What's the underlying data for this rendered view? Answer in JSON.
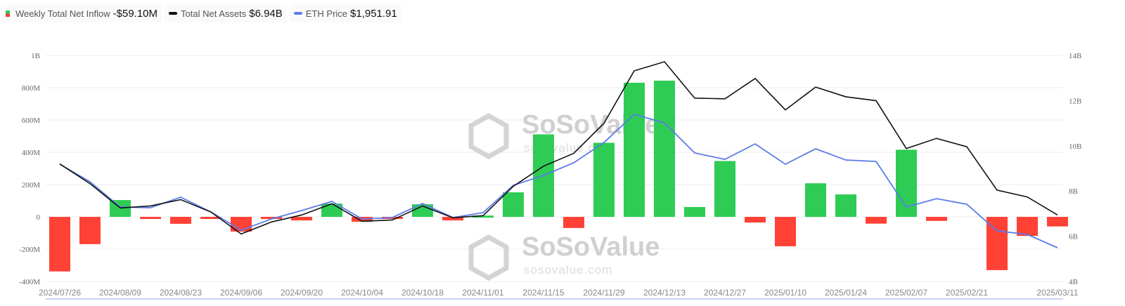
{
  "legend": [
    {
      "label": "Weekly Total Net Inflow",
      "value": "-$59.10M"
    },
    {
      "label": "Total Net Assets",
      "value": "$6.94B"
    },
    {
      "label": "ETH Price",
      "value": "$1,951.91"
    }
  ],
  "watermark": {
    "brand": "SoSoValue",
    "url": "sosovalue.com"
  },
  "colors": {
    "positive": "#2ecc55",
    "negative": "#ff4136",
    "assets": "#111111",
    "price": "#5b7be8"
  },
  "chart_data": {
    "type": "bar+line",
    "x": [
      "2024/07/26",
      "2024/08/02",
      "2024/08/09",
      "2024/08/16",
      "2024/08/23",
      "2024/08/30",
      "2024/09/06",
      "2024/09/13",
      "2024/09/20",
      "2024/09/27",
      "2024/10/04",
      "2024/10/11",
      "2024/10/18",
      "2024/10/25",
      "2024/11/01",
      "2024/11/08",
      "2024/11/15",
      "2024/11/22",
      "2024/11/29",
      "2024/12/06",
      "2024/12/13",
      "2024/12/20",
      "2024/12/27",
      "2025/01/03",
      "2025/01/10",
      "2025/01/17",
      "2025/01/24",
      "2025/01/31",
      "2025/02/07",
      "2025/02/14",
      "2025/02/21",
      "2025/02/28",
      "2025/03/07",
      "2025/03/11"
    ],
    "x_tick_labels": [
      "2024/07/26",
      "2024/08/09",
      "2024/08/23",
      "2024/09/06",
      "2024/09/20",
      "2024/10/04",
      "2024/10/18",
      "2024/11/01",
      "2024/11/15",
      "2024/11/29",
      "2024/12/13",
      "2024/12/27",
      "2025/01/10",
      "2025/01/24",
      "2025/02/07",
      "2025/02/21",
      "2025/03/11"
    ],
    "left_axis": {
      "ticks": [
        "1B",
        "800M",
        "600M",
        "400M",
        "200M",
        "0",
        "-200M",
        "-400M"
      ],
      "range_millions": [
        -400,
        1000
      ]
    },
    "right_axis": {
      "ticks": [
        "14B",
        "12B",
        "10B",
        "8B",
        "6B",
        "4B"
      ],
      "range_billions": [
        4,
        14
      ]
    },
    "grid": true,
    "series": [
      {
        "name": "Weekly Total Net Inflow",
        "type": "bar",
        "axis": "left",
        "unit": "M USD",
        "values": [
          -338,
          -169,
          104,
          -12,
          -43,
          -10,
          -91,
          -12,
          -22,
          82,
          -30,
          -10,
          78,
          -22,
          8,
          152,
          511,
          -69,
          459,
          831,
          844,
          61,
          346,
          -35,
          -182,
          208,
          139,
          -42,
          416,
          -25,
          0,
          -330,
          -118,
          -59.1
        ]
      },
      {
        "name": "Total Net Assets",
        "type": "line",
        "axis": "right",
        "unit": "B USD",
        "values": [
          9.2,
          8.33,
          7.25,
          7.34,
          7.62,
          7.07,
          6.1,
          6.63,
          6.94,
          7.44,
          6.66,
          6.72,
          7.34,
          6.82,
          6.91,
          8.21,
          9.1,
          9.67,
          11.0,
          13.32,
          13.72,
          12.11,
          12.08,
          12.98,
          11.59,
          12.6,
          12.17,
          12.0,
          9.88,
          10.33,
          9.96,
          8.04,
          7.74,
          6.94
        ]
      },
      {
        "name": "ETH Price",
        "type": "line",
        "axis": "hidden",
        "unit": "USD",
        "values": [
          3249,
          2977,
          2584,
          2573,
          2737,
          2508,
          2224,
          2399,
          2530,
          2671,
          2399,
          2421,
          2639,
          2421,
          2497,
          2922,
          3075,
          3271,
          3587,
          4023,
          3892,
          3424,
          3325,
          3565,
          3249,
          3489,
          3314,
          3293,
          2584,
          2715,
          2628,
          2214,
          2159,
          1951.91
        ]
      }
    ]
  }
}
